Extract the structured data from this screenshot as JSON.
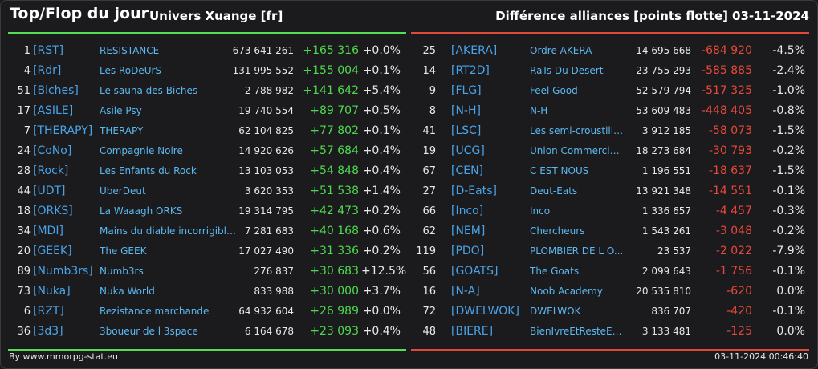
{
  "header": {
    "title": "Top/Flop du jour",
    "subtitle": "Univers Xuange [fr]",
    "right_title": "Différence alliances [points flotte]",
    "date": "03-11-2024"
  },
  "colors": {
    "top_accent": "#55dd55",
    "flop_accent": "#e04a3a",
    "tag_color": "#4aa3e8",
    "positive": "#4fd94f",
    "negative": "#e8483a"
  },
  "top": [
    {
      "rank": "1",
      "tag": "[RST]",
      "name": "RESISTANCE",
      "points": "673 641 261",
      "diff": "+165 316",
      "pct": "+0.0%"
    },
    {
      "rank": "4",
      "tag": "[Rdr]",
      "name": "Les RoDeUrS",
      "points": "131 995 552",
      "diff": "+155 004",
      "pct": "+0.1%"
    },
    {
      "rank": "51",
      "tag": "[Biches]",
      "name": "Le sauna des Biches",
      "points": "2 788 982",
      "diff": "+141 642",
      "pct": "+5.4%"
    },
    {
      "rank": "17",
      "tag": "[ASILE]",
      "name": "Asile Psy",
      "points": "19 740 554",
      "diff": "+89 707",
      "pct": "+0.5%"
    },
    {
      "rank": "7",
      "tag": "[THERAPY]",
      "name": "THERAPY",
      "points": "62 104 825",
      "diff": "+77 802",
      "pct": "+0.1%"
    },
    {
      "rank": "24",
      "tag": "[CoNo]",
      "name": "Compagnie Noire",
      "points": "14 920 626",
      "diff": "+57 684",
      "pct": "+0.4%"
    },
    {
      "rank": "28",
      "tag": "[Rock]",
      "name": "Les Enfants du Rock",
      "points": "13 103 053",
      "diff": "+54 848",
      "pct": "+0.4%"
    },
    {
      "rank": "44",
      "tag": "[UDT]",
      "name": "UberDeut",
      "points": "3 620 353",
      "diff": "+51 538",
      "pct": "+1.4%"
    },
    {
      "rank": "18",
      "tag": "[ORKS]",
      "name": "La Waaagh ORKS",
      "points": "19 314 795",
      "diff": "+42 473",
      "pct": "+0.2%"
    },
    {
      "rank": "34",
      "tag": "[MDI]",
      "name": "Mains du diable incorrigibles",
      "points": "7 281 683",
      "diff": "+40 168",
      "pct": "+0.6%"
    },
    {
      "rank": "20",
      "tag": "[GEEK]",
      "name": "The GEEK",
      "points": "17 027 490",
      "diff": "+31 336",
      "pct": "+0.2%"
    },
    {
      "rank": "89",
      "tag": "[Numb3rs]",
      "name": "Numb3rs",
      "points": "276 837",
      "diff": "+30 683",
      "pct": "+12.5%"
    },
    {
      "rank": "73",
      "tag": "[Nuka]",
      "name": "Nuka World",
      "points": "833 988",
      "diff": "+30 000",
      "pct": "+3.7%"
    },
    {
      "rank": "6",
      "tag": "[RZT]",
      "name": "Rezistance marchande",
      "points": "64 932 604",
      "diff": "+26 989",
      "pct": "+0.0%"
    },
    {
      "rank": "36",
      "tag": "[3d3]",
      "name": "3boueur de l 3space",
      "points": "6 164 678",
      "diff": "+23 093",
      "pct": "+0.4%"
    }
  ],
  "flop": [
    {
      "rank": "25",
      "tag": "[AKERA]",
      "name": "Ordre AKERA",
      "points": "14 695 668",
      "diff": "-684 920",
      "pct": "-4.5%"
    },
    {
      "rank": "14",
      "tag": "[RT2D]",
      "name": "RaTs Du Desert",
      "points": "23 755 293",
      "diff": "-585 885",
      "pct": "-2.4%"
    },
    {
      "rank": "9",
      "tag": "[FLG]",
      "name": "Feel Good",
      "points": "52 579 794",
      "diff": "-517 325",
      "pct": "-1.0%"
    },
    {
      "rank": "8",
      "tag": "[N-H]",
      "name": "N-H",
      "points": "53 609 483",
      "diff": "-448 405",
      "pct": "-0.8%"
    },
    {
      "rank": "41",
      "tag": "[LSC]",
      "name": "Les semi-croustilla...",
      "points": "3 912 185",
      "diff": "-58 073",
      "pct": "-1.5%"
    },
    {
      "rank": "19",
      "tag": "[UCG]",
      "name": "Union Commerciale...",
      "points": "18 273 684",
      "diff": "-30 793",
      "pct": "-0.2%"
    },
    {
      "rank": "67",
      "tag": "[CEN]",
      "name": "C EST NOUS",
      "points": "1 196 551",
      "diff": "-18 637",
      "pct": "-1.5%"
    },
    {
      "rank": "27",
      "tag": "[D-Eats]",
      "name": "Deut-Eats",
      "points": "13 921 348",
      "diff": "-14 551",
      "pct": "-0.1%"
    },
    {
      "rank": "66",
      "tag": "[Inco]",
      "name": "Inco",
      "points": "1 336 657",
      "diff": "-4 457",
      "pct": "-0.3%"
    },
    {
      "rank": "62",
      "tag": "[NEM]",
      "name": "Chercheurs",
      "points": "1 543 261",
      "diff": "-3 048",
      "pct": "-0.2%"
    },
    {
      "rank": "119",
      "tag": "[PDO]",
      "name": "PLOMBIER DE L O...",
      "points": "23 537",
      "diff": "-2 022",
      "pct": "-7.9%"
    },
    {
      "rank": "56",
      "tag": "[GOATS]",
      "name": "The Goats",
      "points": "2 099 643",
      "diff": "-1 756",
      "pct": "-0.1%"
    },
    {
      "rank": "16",
      "tag": "[N-A]",
      "name": "Noob Academy",
      "points": "20 535 810",
      "diff": "-620",
      "pct": "0.0%"
    },
    {
      "rank": "72",
      "tag": "[DWELWOK]",
      "name": "DWELWOK",
      "points": "836 707",
      "diff": "-420",
      "pct": "-0.1%"
    },
    {
      "rank": "48",
      "tag": "[BIERE]",
      "name": "BienIvreEtResteECU",
      "points": "3 133 481",
      "diff": "-125",
      "pct": "0.0%"
    }
  ],
  "footer": {
    "credit": "By www.mmorpg-stat.eu",
    "timestamp": "03-11-2024 00:46:40"
  }
}
